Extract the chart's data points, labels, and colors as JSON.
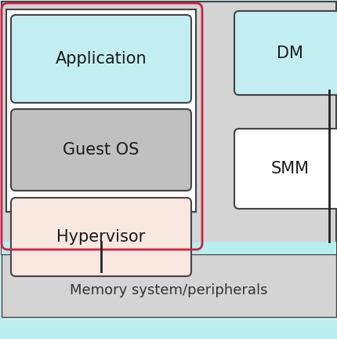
{
  "fig_width": 4.31,
  "fig_height": 4.32,
  "bg_color": "#c8f4f4",
  "outer_bg_color": "#d4d4d4",
  "cyan_color": "#c2eef2",
  "guest_os_color": "#c0c0c0",
  "hypervisor_color": "#f9e8e0",
  "white_color": "#ffffff",
  "box_stroke": "#444444",
  "red_stroke": "#cc2244",
  "title_text": "Memory system/peripherals",
  "app_label": "Application",
  "guestos_label": "Guest OS",
  "hypervisor_label": "Hypervisor",
  "dm_label": "DM",
  "smm_label": "SMM",
  "mem_bar_color": "#b8eeee"
}
